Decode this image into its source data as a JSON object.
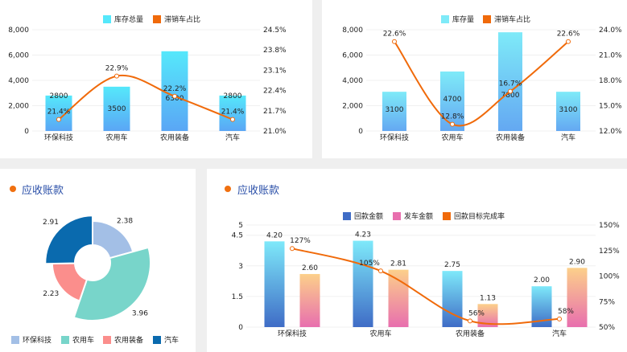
{
  "panels": {
    "receivables_title": "应收账款",
    "receivables_title2": "应收账款"
  },
  "chart_data": [
    {
      "type": "bar+line",
      "categories": [
        "环保科技",
        "农用车",
        "农用装备",
        "汽车"
      ],
      "series": [
        {
          "name": "库存总量",
          "type": "bar",
          "values": [
            2800,
            3500,
            6300,
            2800
          ],
          "axis": "left"
        },
        {
          "name": "滞销车占比",
          "type": "line",
          "values": [
            21.4,
            22.9,
            22.2,
            21.4
          ],
          "labels": [
            "21.4%",
            "22.9%",
            "22.2%",
            "21.4%"
          ],
          "axis": "right"
        }
      ],
      "ylim": [
        0,
        8000
      ],
      "yticks": [
        "0",
        "2,000",
        "4,000",
        "6,000",
        "8,000"
      ],
      "y2lim": [
        21.0,
        24.5
      ],
      "y2ticks": [
        "21.0%",
        "21.7%",
        "22.4%",
        "23.1%",
        "23.8%",
        "24.5%"
      ],
      "legend": "top",
      "grid": true,
      "colors": {
        "bar_top": "#55e8fb",
        "bar_bottom": "#5aa6f5",
        "line": "#f06a0a"
      }
    },
    {
      "type": "bar+line",
      "categories": [
        "环保科技",
        "农用车",
        "农用装备",
        "汽车"
      ],
      "series": [
        {
          "name": "库存量",
          "type": "bar",
          "values": [
            3100,
            4700,
            7800,
            3100
          ],
          "axis": "left"
        },
        {
          "name": "滞销车占比",
          "type": "line",
          "values": [
            22.6,
            12.8,
            16.7,
            22.6
          ],
          "labels": [
            "22.6%",
            "12.8%",
            "16.7%",
            "22.6%"
          ],
          "axis": "right"
        }
      ],
      "ylim": [
        0,
        8000
      ],
      "yticks": [
        "0",
        "2,000",
        "4,000",
        "6,000",
        "8,000"
      ],
      "y2lim": [
        12.0,
        24.0
      ],
      "y2ticks": [
        "12.0%",
        "15.0%",
        "18.0%",
        "21.0%",
        "24.0%"
      ],
      "legend": "top",
      "grid": true,
      "colors": {
        "bar_top": "#7eeaf8",
        "bar_bottom": "#64a8f2",
        "line": "#f06a0a"
      }
    },
    {
      "type": "pie",
      "rose": true,
      "categories": [
        "环保科技",
        "农用车",
        "农用装备",
        "汽车"
      ],
      "values": [
        2.38,
        3.96,
        2.23,
        2.91
      ],
      "labels": [
        "2.38",
        "3.96",
        "2.23",
        "2.91"
      ],
      "colors": [
        "#a3bfe6",
        "#78d5ca",
        "#fb8e8c",
        "#0a6aae"
      ],
      "legend": "bottom"
    },
    {
      "type": "bar+line",
      "categories": [
        "环保科技",
        "农用车",
        "农用装备",
        "汽车"
      ],
      "series": [
        {
          "name": "回款金额",
          "type": "bar",
          "values": [
            4.2,
            4.23,
            2.75,
            2.0
          ],
          "labels": [
            "4.20",
            "4.23",
            "2.75",
            "2.00"
          ],
          "axis": "left"
        },
        {
          "name": "发车金额",
          "type": "bar",
          "values": [
            2.6,
            2.81,
            1.13,
            2.9
          ],
          "labels": [
            "2.60",
            "2.81",
            "1.13",
            "2.90"
          ],
          "axis": "left"
        },
        {
          "name": "回款目标完成率",
          "type": "line",
          "values": [
            127,
            105,
            56,
            58
          ],
          "labels": [
            "127%",
            "105%",
            "56%",
            "58%"
          ],
          "axis": "right"
        }
      ],
      "ylim": [
        0,
        5
      ],
      "yticks": [
        "0",
        "1.5",
        "3",
        "4.5",
        "5"
      ],
      "ytick_values": [
        0,
        1.5,
        3,
        4.5,
        5
      ],
      "y2lim": [
        50,
        150
      ],
      "y2ticks": [
        "50%",
        "75%",
        "100%",
        "125%",
        "150%"
      ],
      "legend": "top",
      "grid": true,
      "colors": {
        "bar1_top": "#7ee9fa",
        "bar1_bottom": "#3f6cc6",
        "bar2_top": "#fcd08a",
        "bar2_bottom": "#e86fae",
        "line": "#f06a0a"
      }
    }
  ]
}
